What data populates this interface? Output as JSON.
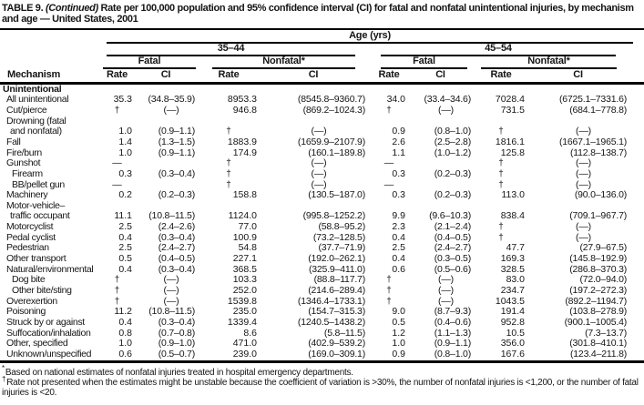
{
  "title": {
    "prefix": "TABLE 9. ",
    "continued": "(Continued)",
    "rest": " Rate per 100,000 population and 95% confidence interval (CI) for fatal and nonfatal unintentional injuries, by mechanism and age — United States, 2001"
  },
  "header": {
    "age_label": "Age (yrs)",
    "mechanism_label": "Mechanism",
    "rate_label": "Rate",
    "ci_label": "CI",
    "groups": [
      {
        "label": "35–44",
        "subgroups": [
          {
            "label": "Fatal"
          },
          {
            "label": "Nonfatal*"
          }
        ]
      },
      {
        "label": "45–54",
        "subgroups": [
          {
            "label": "Fatal"
          },
          {
            "label": "Nonfatal*"
          }
        ]
      }
    ]
  },
  "table": {
    "rows": [
      {
        "label": "Unintentional",
        "indent": 0,
        "section": true,
        "cells": [
          "",
          "",
          "",
          "",
          "",
          "",
          "",
          ""
        ]
      },
      {
        "label": "All unintentional",
        "indent": 1,
        "cells": [
          "35.3",
          "(34.8–35.9)",
          "8953.3",
          "(8545.8–9360.7)",
          "34.0",
          "(33.4–34.6)",
          "7028.4",
          "(6725.1–7331.6)"
        ]
      },
      {
        "label": "Cut/pierce",
        "indent": 1,
        "cells": [
          "†",
          "(—)",
          "946.8",
          "(869.2–1024.3)",
          "†",
          "(—)",
          "731.5",
          "(684.1–778.8)"
        ]
      },
      {
        "label": "Drowning (fatal",
        "label2": "and nonfatal)",
        "indent": 1,
        "cells": [
          "1.0",
          "(0.9–1.1)",
          "†",
          "(—)",
          "0.9",
          "(0.8–1.0)",
          "†",
          "(—)"
        ]
      },
      {
        "label": "Fall",
        "indent": 1,
        "cells": [
          "1.4",
          "(1.3–1.5)",
          "1883.9",
          "(1659.9–2107.9)",
          "2.6",
          "(2.5–2.8)",
          "1816.1",
          "(1667.1–1965.1)"
        ]
      },
      {
        "label": "Fire/burn",
        "indent": 1,
        "cells": [
          "1.0",
          "(0.9–1.1)",
          "174.9",
          "(160.1–189.8)",
          "1.1",
          "(1.0–1.2)",
          "125.8",
          "(112.8–138.7)"
        ]
      },
      {
        "label": "Gunshot",
        "indent": 1,
        "cells": [
          "—",
          "",
          "†",
          "(—)",
          "—",
          "",
          "†",
          "(—)"
        ]
      },
      {
        "label": "Firearm",
        "indent": 2,
        "cells": [
          "0.3",
          "(0.3–0.4)",
          "†",
          "(—)",
          "0.3",
          "(0.2–0.3)",
          "†",
          "(—)"
        ]
      },
      {
        "label": "BB/pellet gun",
        "indent": 2,
        "cells": [
          "—",
          "",
          "†",
          "(—)",
          "—",
          "",
          "†",
          "(—)"
        ]
      },
      {
        "label": "Machinery",
        "indent": 1,
        "cells": [
          "0.2",
          "(0.2–0.3)",
          "158.8",
          "(130.5–187.0)",
          "0.3",
          "(0.2–0.3)",
          "113.0",
          "(90.0–136.0)"
        ]
      },
      {
        "label": "Motor-vehicle–",
        "label2": "traffic occupant",
        "indent": 1,
        "cells": [
          "11.1",
          "(10.8–11.5)",
          "1124.0",
          "(995.8–1252.2)",
          "9.9",
          "(9.6–10.3)",
          "838.4",
          "(709.1–967.7)"
        ]
      },
      {
        "label": "Motorcyclist",
        "indent": 1,
        "cells": [
          "2.5",
          "(2.4–2.6)",
          "77.0",
          "(58.8–95.2)",
          "2.3",
          "(2.1–2.4)",
          "†",
          "(—)"
        ]
      },
      {
        "label": "Pedal cyclist",
        "indent": 1,
        "cells": [
          "0.4",
          "(0.3–0.4)",
          "100.9",
          "(73.2–128.5)",
          "0.4",
          "(0.4–0.5)",
          "†",
          "(—)"
        ]
      },
      {
        "label": "Pedestrian",
        "indent": 1,
        "cells": [
          "2.5",
          "(2.4–2.7)",
          "54.8",
          "(37.7–71.9)",
          "2.5",
          "(2.4–2.7)",
          "47.7",
          "(27.9–67.5)"
        ]
      },
      {
        "label": "Other transport",
        "indent": 1,
        "cells": [
          "0.5",
          "(0.4–0.5)",
          "227.1",
          "(192.0–262.1)",
          "0.4",
          "(0.3–0.5)",
          "169.3",
          "(145.8–192.9)"
        ]
      },
      {
        "label": "Natural/environmental",
        "indent": 1,
        "cells": [
          "0.4",
          "(0.3–0.4)",
          "368.5",
          "(325.9–411.0)",
          "0.6",
          "(0.5–0.6)",
          "328.5",
          "(286.8–370.3)"
        ]
      },
      {
        "label": "Dog bite",
        "indent": 2,
        "cells": [
          "†",
          "(—)",
          "103.3",
          "(88.8–117.7)",
          "†",
          "(—)",
          "83.0",
          "(72.0–94.0)"
        ]
      },
      {
        "label": "Other bite/sting",
        "indent": 2,
        "cells": [
          "†",
          "(—)",
          "252.0",
          "(214.6–289.4)",
          "†",
          "(—)",
          "234.7",
          "(197.2–272.3)"
        ]
      },
      {
        "label": "Overexertion",
        "indent": 1,
        "cells": [
          "†",
          "(—)",
          "1539.8",
          "(1346.4–1733.1)",
          "†",
          "(—)",
          "1043.5",
          "(892.2–1194.7)"
        ]
      },
      {
        "label": "Poisoning",
        "indent": 1,
        "cells": [
          "11.2",
          "(10.8–11.5)",
          "235.0",
          "(154.7–315.3)",
          "9.0",
          "(8.7–9.3)",
          "191.4",
          "(103.8–278.9)"
        ]
      },
      {
        "label": "Struck by or against",
        "indent": 1,
        "cells": [
          "0.4",
          "(0.3–0.4)",
          "1339.4",
          "(1240.5–1438.2)",
          "0.5",
          "(0.4–0.6)",
          "952.8",
          "(900.1–1005.4)"
        ]
      },
      {
        "label": "Suffocation/inhalation",
        "indent": 1,
        "cells": [
          "0.8",
          "(0.7–0.8)",
          "8.6",
          "(5.8–11.5)",
          "1.2",
          "(1.1–1.3)",
          "10.5",
          "(7.3–13.7)"
        ]
      },
      {
        "label": "Other, specified",
        "indent": 1,
        "cells": [
          "1.0",
          "(0.9–1.0)",
          "471.0",
          "(402.9–539.2)",
          "1.0",
          "(0.9–1.1)",
          "356.0",
          "(301.8–410.1)"
        ]
      },
      {
        "label": "Unknown/unspecified",
        "indent": 1,
        "cells": [
          "0.6",
          "(0.5–0.7)",
          "239.0",
          "(169.0–309.1)",
          "0.9",
          "(0.8–1.0)",
          "167.6",
          "(123.4–211.8)"
        ]
      }
    ]
  },
  "footnotes": [
    {
      "marker": "*",
      "text": "Based on national estimates of nonfatal injuries treated in hospital emergency departments."
    },
    {
      "marker": "†",
      "text": "Rate not presented when the estimates might be unstable because the coefficient of variation is >30%, the number of nonfatal injuries is <1,200, or the number of fatal injuries is <20."
    }
  ]
}
